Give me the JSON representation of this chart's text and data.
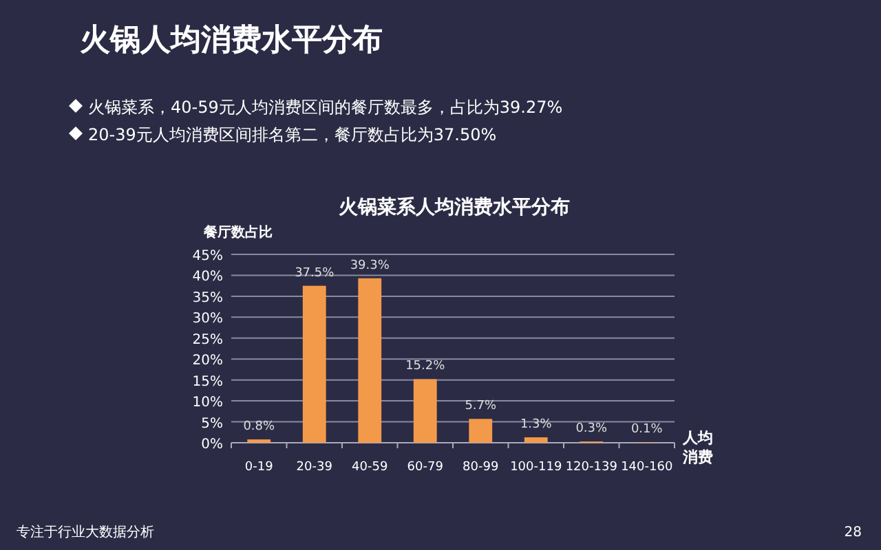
{
  "chart_data": {
    "type": "bar",
    "title": "火锅人均消费水平分布",
    "subtitle": "火锅菜系人均消费水平分布",
    "ylabel": "餐厅数占比",
    "xlabel": "人均消费",
    "categories": [
      "0-19",
      "20-39",
      "40-59",
      "60-79",
      "80-99",
      "100-119",
      "120-139",
      "140-160"
    ],
    "values": [
      0.8,
      37.5,
      39.3,
      15.2,
      5.7,
      1.3,
      0.3,
      0.1
    ],
    "value_labels": [
      "0.8%",
      "37.5%",
      "39.3%",
      "15.2%",
      "5.7%",
      "1.3%",
      "0.3%",
      "0.1%"
    ],
    "color": "#f39a4a",
    "ylim": [
      0,
      45
    ],
    "yticks": [
      {
        "value": 0,
        "label": "0%"
      },
      {
        "value": 5,
        "label": "5%"
      },
      {
        "value": 10,
        "label": "10%"
      },
      {
        "value": 15,
        "label": "15%"
      },
      {
        "value": 20,
        "label": "20%"
      },
      {
        "value": 25,
        "label": "25%"
      },
      {
        "value": 30,
        "label": "30%"
      },
      {
        "value": 35,
        "label": "35%"
      },
      {
        "value": 40,
        "label": "40%"
      },
      {
        "value": 45,
        "label": "45%"
      }
    ],
    "grid": "y",
    "annotations": [
      "火锅菜系，40-59元人均消费区间的餐厅数最多，占比为39.27%",
      "20-39元人均消费区间排名第二，餐厅数占比为37.50%",
      "专注于行业大数据分析",
      "28"
    ]
  }
}
